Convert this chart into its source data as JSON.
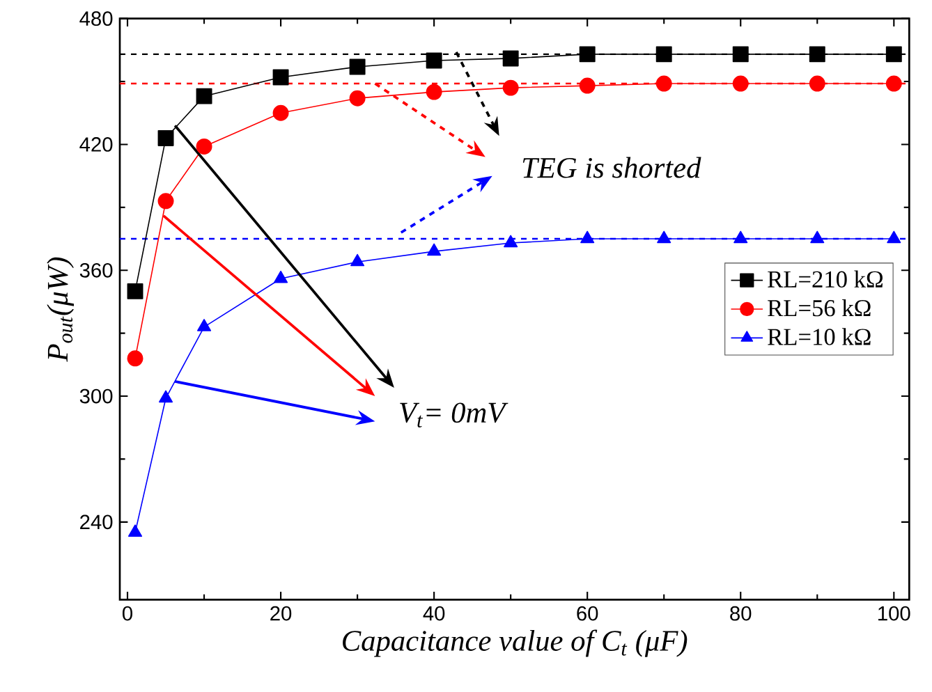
{
  "chart_data": {
    "type": "line",
    "xlabel": "Capacitance value of C$_{t}$ (μF)",
    "ylabel": "P$_{out}$(μW)",
    "xlim": [
      -1,
      102
    ],
    "xticks": [
      0,
      20,
      40,
      60,
      80,
      100
    ],
    "ylim": [
      203,
      480
    ],
    "yticks": [
      240,
      300,
      360,
      420,
      480
    ],
    "legend": "right",
    "line_style": "solid",
    "series": [
      {
        "name": "RL=210 kΩ",
        "color": "#000000",
        "marker": "square",
        "x": [
          1,
          5,
          10,
          20,
          30,
          40,
          50,
          60,
          70,
          80,
          90,
          100
        ],
        "values": [
          350,
          423,
          443,
          452,
          457,
          460,
          461,
          463,
          463,
          463,
          463,
          463
        ]
      },
      {
        "name": "RL=56 kΩ",
        "color": "#ff0000",
        "marker": "circle",
        "x": [
          1,
          5,
          10,
          20,
          30,
          40,
          50,
          60,
          70,
          80,
          90,
          100
        ],
        "values": [
          318,
          393,
          419,
          435,
          442,
          445,
          447,
          448,
          449,
          449,
          449,
          449
        ]
      },
      {
        "name": "RL=10 kΩ",
        "color": "#0000ff",
        "marker": "triangle",
        "x": [
          1,
          5,
          10,
          20,
          30,
          40,
          50,
          60,
          70,
          80,
          90,
          100
        ],
        "values": [
          235,
          299,
          333,
          356,
          364,
          369,
          373,
          375,
          375,
          375,
          375,
          375
        ]
      }
    ],
    "ref_lines": [
      {
        "axis": "y",
        "value": 463,
        "color": "#000000",
        "line_style": "dashed"
      },
      {
        "axis": "y",
        "value": 449,
        "color": "#ff0000",
        "line_style": "dashed"
      },
      {
        "axis": "y",
        "value": 375,
        "color": "#0000ff",
        "line_style": "dashed"
      }
    ],
    "annotations": [
      "TEG is shorted",
      "V$_{t}$= 0mV"
    ]
  }
}
